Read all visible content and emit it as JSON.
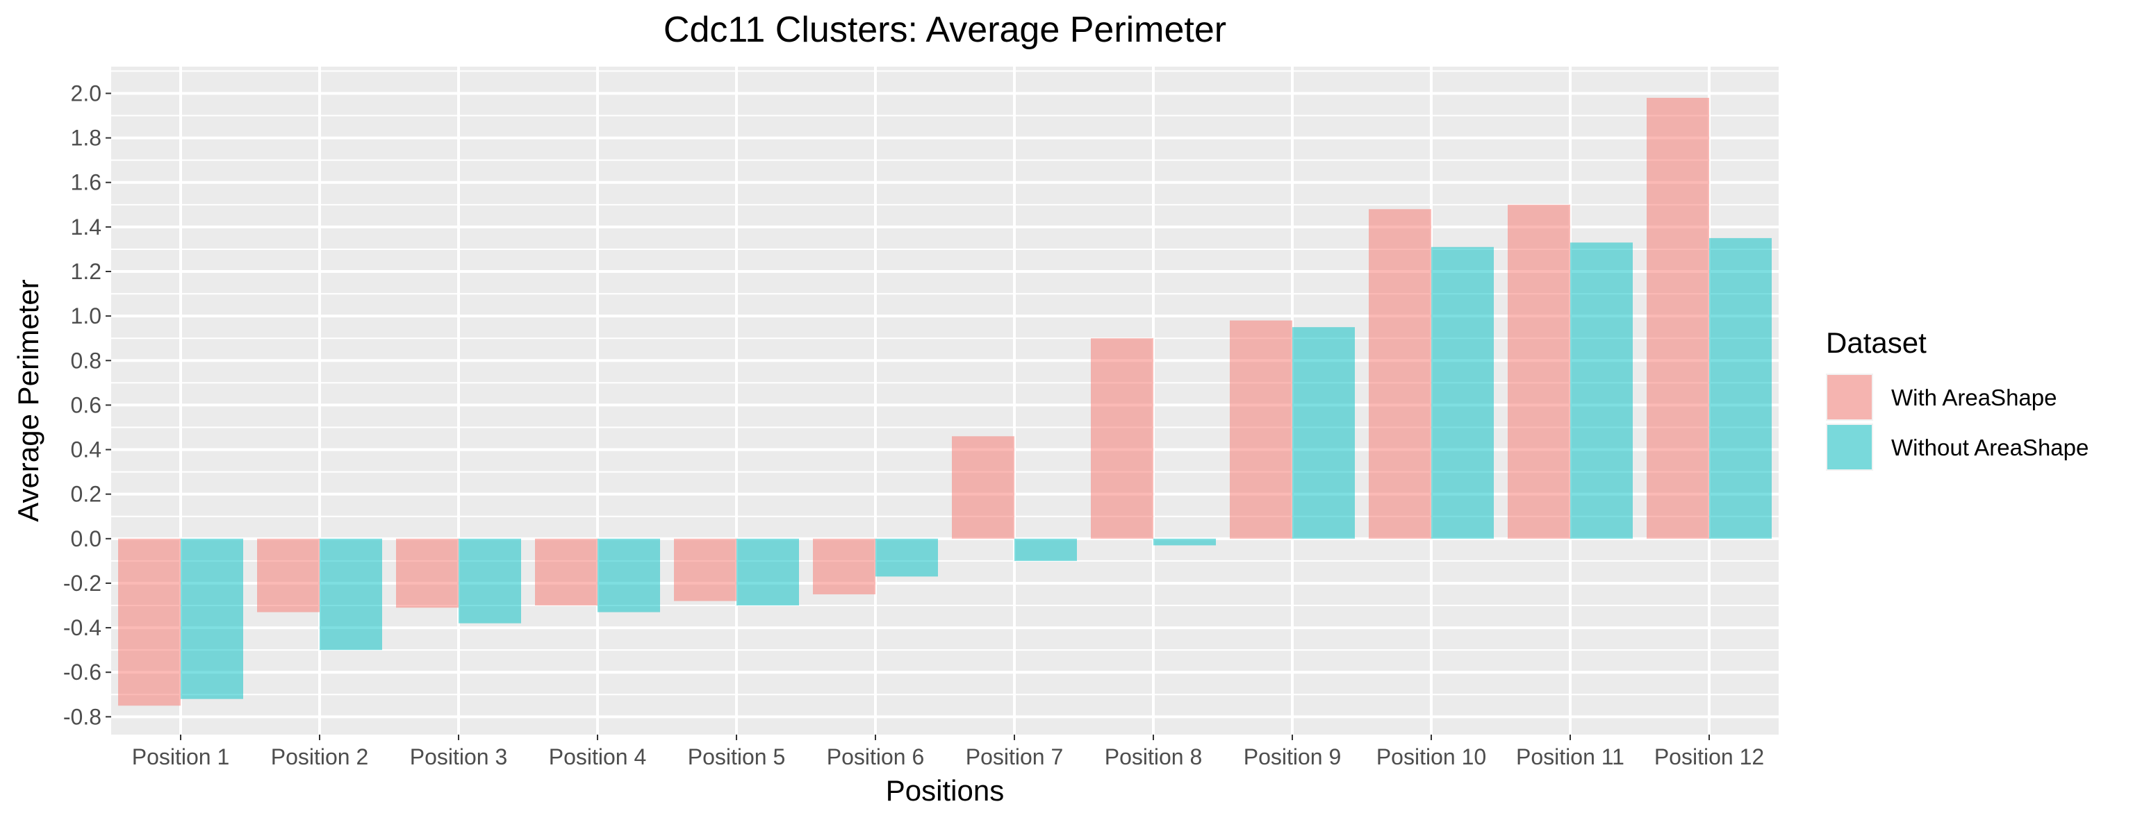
{
  "chart_data": {
    "type": "bar",
    "title": "Cdc11 Clusters: Average Perimeter",
    "xlabel": "Positions",
    "ylabel": "Average Perimeter",
    "categories": [
      "Position 1",
      "Position 2",
      "Position 3",
      "Position 4",
      "Position 5",
      "Position 6",
      "Position 7",
      "Position 8",
      "Position 9",
      "Position 10",
      "Position 11",
      "Position 12"
    ],
    "series": [
      {
        "name": "With AreaShape",
        "color": "#F8766D",
        "values": [
          -0.75,
          -0.33,
          -0.31,
          -0.3,
          -0.28,
          -0.25,
          0.46,
          0.9,
          0.98,
          1.48,
          1.5,
          1.98
        ]
      },
      {
        "name": "Without AreaShape",
        "color": "#00BFC4",
        "values": [
          -0.72,
          -0.5,
          -0.38,
          -0.33,
          -0.3,
          -0.17,
          -0.1,
          -0.03,
          0.95,
          1.31,
          1.33,
          1.35
        ]
      }
    ],
    "ylim": [
      -0.88,
      2.12
    ],
    "yticks": [
      "-0.8",
      "-0.6",
      "-0.4",
      "-0.2",
      "0.0",
      "0.2",
      "0.4",
      "0.6",
      "0.8",
      "1.0",
      "1.2",
      "1.4",
      "1.6",
      "1.8",
      "2.0"
    ],
    "bar_opacity": 0.5,
    "grid": true,
    "panel_background": "#EBEBEB",
    "legend": {
      "title": "Dataset",
      "position": "right"
    }
  }
}
